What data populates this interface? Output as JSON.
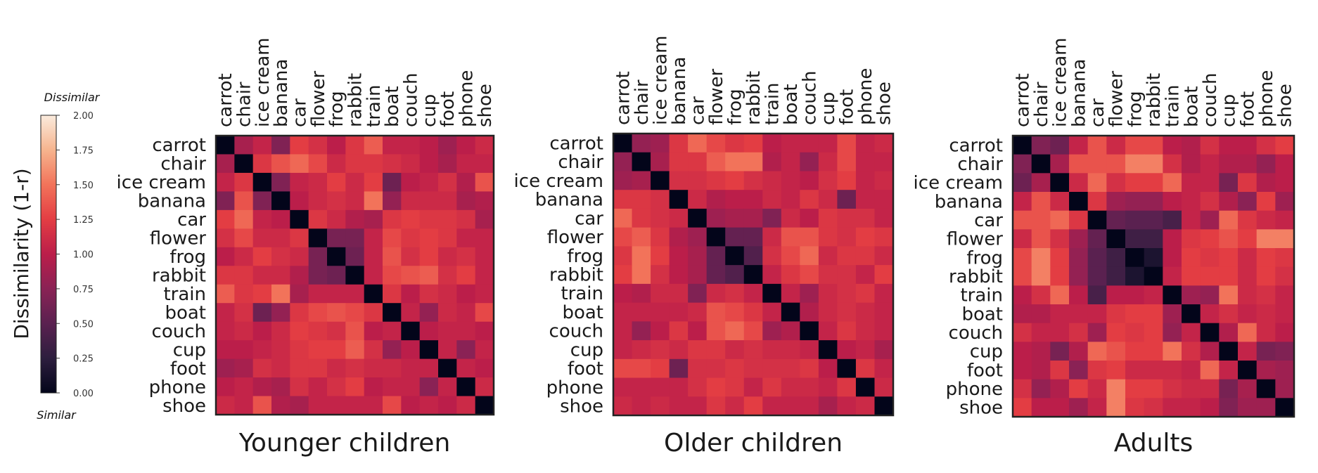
{
  "chart_data": {
    "type": "heatmap",
    "items": [
      "carrot",
      "chair",
      "ice cream",
      "banana",
      "car",
      "flower",
      "frog",
      "rabbit",
      "train",
      "boat",
      "couch",
      "cup",
      "foot",
      "phone",
      "shoe"
    ],
    "colorbar": {
      "label": "Dissimilarity (1-r)",
      "top_label": "Dissimilar",
      "bottom_label": "Similar",
      "range": [
        0,
        2
      ],
      "ticks": [
        "2.00",
        "1.75",
        "1.50",
        "1.25",
        "1.00",
        "0.75",
        "0.50",
        "0.25",
        "0.00"
      ],
      "colormap": "rocket"
    },
    "panels": [
      {
        "title": "Younger children",
        "matrix": [
          [
            0.0,
            0.9,
            1.05,
            0.7,
            1.25,
            1.15,
            1.0,
            1.2,
            1.4,
            1.05,
            1.05,
            1.0,
            0.85,
            1.0,
            1.1
          ],
          [
            0.9,
            0.0,
            1.2,
            1.35,
            1.45,
            1.3,
            1.1,
            1.2,
            1.2,
            1.15,
            1.1,
            1.0,
            0.9,
            1.05,
            1.05
          ],
          [
            1.05,
            1.2,
            0.0,
            0.7,
            1.05,
            1.1,
            1.25,
            1.1,
            1.25,
            0.6,
            1.0,
            1.05,
            1.15,
            0.95,
            1.35
          ],
          [
            0.7,
            1.35,
            0.7,
            0.0,
            1.0,
            1.1,
            1.15,
            1.1,
            1.5,
            0.8,
            1.1,
            1.1,
            1.1,
            0.9,
            0.95
          ],
          [
            1.25,
            1.45,
            1.05,
            1.0,
            0.0,
            1.2,
            1.1,
            0.95,
            0.9,
            1.2,
            1.25,
            1.2,
            1.2,
            1.15,
            0.9
          ],
          [
            1.15,
            1.3,
            1.1,
            1.1,
            1.2,
            0.0,
            0.65,
            0.65,
            1.05,
            1.3,
            1.2,
            1.25,
            1.2,
            1.05,
            1.05
          ],
          [
            1.0,
            1.1,
            1.25,
            1.15,
            1.1,
            0.65,
            0.0,
            0.6,
            1.05,
            1.35,
            1.15,
            1.25,
            1.1,
            1.15,
            1.05
          ],
          [
            1.2,
            1.2,
            1.1,
            1.1,
            0.95,
            0.65,
            0.6,
            0.0,
            1.05,
            1.3,
            1.35,
            1.4,
            1.15,
            1.25,
            1.05
          ],
          [
            1.4,
            1.2,
            1.25,
            1.5,
            0.9,
            1.05,
            1.05,
            1.05,
            0.0,
            1.2,
            1.0,
            1.15,
            1.1,
            1.0,
            1.05
          ],
          [
            1.05,
            1.15,
            0.6,
            0.8,
            1.2,
            1.3,
            1.35,
            1.3,
            1.2,
            0.0,
            1.05,
            0.8,
            1.1,
            1.05,
            1.3
          ],
          [
            1.05,
            1.1,
            1.0,
            1.1,
            1.25,
            1.2,
            1.15,
            1.35,
            1.0,
            1.05,
            0.0,
            1.0,
            1.05,
            1.05,
            1.0
          ],
          [
            1.0,
            1.0,
            1.05,
            1.1,
            1.2,
            1.25,
            1.25,
            1.4,
            1.15,
            0.8,
            1.0,
            0.0,
            1.05,
            0.75,
            1.05
          ],
          [
            0.85,
            0.9,
            1.15,
            1.1,
            1.2,
            1.2,
            1.1,
            1.15,
            1.1,
            1.1,
            1.05,
            1.05,
            0.0,
            1.05,
            1.0
          ],
          [
            1.0,
            1.05,
            0.95,
            0.9,
            1.15,
            1.05,
            1.15,
            1.25,
            1.0,
            1.05,
            1.05,
            0.75,
            1.05,
            0.0,
            1.1
          ],
          [
            1.1,
            1.05,
            1.35,
            0.95,
            0.9,
            1.05,
            1.05,
            1.05,
            1.05,
            1.3,
            1.0,
            1.05,
            1.0,
            1.1,
            0.0
          ]
        ]
      },
      {
        "title": "Older children",
        "matrix": [
          [
            0.0,
            0.8,
            0.85,
            1.2,
            1.45,
            1.3,
            1.2,
            1.25,
            1.0,
            1.05,
            1.05,
            1.05,
            1.3,
            1.05,
            1.1
          ],
          [
            0.8,
            0.0,
            0.9,
            1.2,
            1.2,
            1.4,
            1.5,
            1.5,
            0.95,
            1.05,
            0.8,
            1.1,
            1.3,
            1.05,
            1.05
          ],
          [
            0.85,
            0.9,
            0.0,
            1.15,
            1.15,
            1.2,
            1.25,
            1.15,
            1.1,
            1.05,
            1.0,
            1.15,
            1.25,
            1.05,
            1.1
          ],
          [
            1.2,
            1.2,
            1.15,
            0.0,
            1.1,
            0.95,
            1.0,
            1.0,
            1.1,
            1.05,
            1.2,
            1.1,
            0.6,
            1.05,
            1.05
          ],
          [
            1.45,
            1.2,
            1.15,
            1.1,
            0.0,
            0.85,
            0.9,
            0.9,
            0.7,
            1.1,
            1.0,
            1.2,
            1.15,
            1.15,
            1.05
          ],
          [
            1.3,
            1.4,
            1.2,
            0.95,
            0.85,
            0.0,
            0.55,
            0.55,
            1.1,
            1.35,
            1.35,
            1.2,
            1.15,
            1.25,
            1.2
          ],
          [
            1.2,
            1.5,
            1.25,
            1.0,
            0.9,
            0.55,
            0.0,
            0.45,
            1.15,
            1.3,
            1.45,
            1.1,
            1.2,
            1.2,
            1.1
          ],
          [
            1.25,
            1.5,
            1.15,
            1.0,
            0.9,
            0.55,
            0.45,
            0.0,
            1.05,
            1.2,
            1.3,
            1.15,
            1.15,
            1.05,
            1.25
          ],
          [
            1.0,
            0.95,
            1.1,
            1.1,
            0.7,
            1.1,
            1.15,
            1.05,
            0.0,
            1.05,
            0.85,
            1.1,
            1.15,
            1.2,
            1.05
          ],
          [
            1.05,
            1.05,
            1.05,
            1.05,
            1.1,
            1.35,
            1.3,
            1.2,
            1.05,
            0.0,
            0.95,
            1.1,
            1.15,
            1.1,
            1.05
          ],
          [
            1.05,
            0.8,
            1.0,
            1.2,
            1.0,
            1.35,
            1.45,
            1.3,
            0.85,
            0.95,
            0.0,
            1.05,
            1.2,
            1.1,
            1.05
          ],
          [
            1.05,
            1.1,
            1.15,
            1.1,
            1.2,
            1.2,
            1.1,
            1.15,
            1.1,
            1.1,
            1.05,
            0.0,
            1.0,
            1.05,
            0.9
          ],
          [
            1.3,
            1.3,
            1.25,
            0.6,
            1.15,
            1.15,
            1.2,
            1.15,
            1.15,
            1.15,
            1.2,
            1.0,
            0.0,
            1.2,
            1.05
          ],
          [
            1.05,
            1.05,
            1.05,
            1.05,
            1.15,
            1.25,
            1.2,
            1.05,
            1.2,
            1.1,
            1.1,
            1.05,
            1.2,
            0.0,
            1.1
          ],
          [
            1.1,
            1.05,
            1.1,
            1.05,
            1.05,
            1.2,
            1.1,
            1.25,
            1.05,
            1.05,
            1.05,
            0.9,
            1.05,
            1.1,
            0.0
          ]
        ]
      },
      {
        "title": "Adults",
        "matrix": [
          [
            0.0,
            0.7,
            0.6,
            1.05,
            1.35,
            1.1,
            1.3,
            1.3,
            1.0,
            0.95,
            1.15,
            1.0,
            1.0,
            1.15,
            1.25
          ],
          [
            0.7,
            0.0,
            0.9,
            1.35,
            1.35,
            1.35,
            1.55,
            1.55,
            1.15,
            0.95,
            1.05,
            0.95,
            0.95,
            0.8,
            1.0
          ],
          [
            0.6,
            0.9,
            0.0,
            1.1,
            1.45,
            1.15,
            1.25,
            1.25,
            1.45,
            1.05,
            1.05,
            0.65,
            1.2,
            0.95,
            1.0
          ],
          [
            1.05,
            1.35,
            1.1,
            0.0,
            1.2,
            0.85,
            0.8,
            0.8,
            1.0,
            1.05,
            1.15,
            0.95,
            0.75,
            1.25,
            0.85
          ],
          [
            1.35,
            1.35,
            1.45,
            1.2,
            0.0,
            0.55,
            0.5,
            0.5,
            0.4,
            1.05,
            0.85,
            1.45,
            1.2,
            1.1,
            1.05
          ],
          [
            1.1,
            1.35,
            1.15,
            0.85,
            0.55,
            0.0,
            0.35,
            0.35,
            1.0,
            1.2,
            1.25,
            1.35,
            1.25,
            1.55,
            1.55
          ],
          [
            1.3,
            1.55,
            1.25,
            0.8,
            0.5,
            0.35,
            0.0,
            0.15,
            1.0,
            1.25,
            1.2,
            1.25,
            1.1,
            1.25,
            1.2
          ],
          [
            1.3,
            1.55,
            1.25,
            0.8,
            0.5,
            0.35,
            0.15,
            0.0,
            1.05,
            1.25,
            1.25,
            1.25,
            1.1,
            1.25,
            1.15
          ],
          [
            1.0,
            1.15,
            1.45,
            1.0,
            0.4,
            1.0,
            1.0,
            1.05,
            0.0,
            0.85,
            0.8,
            1.5,
            1.1,
            1.15,
            1.05
          ],
          [
            0.95,
            0.95,
            1.05,
            1.05,
            1.05,
            1.2,
            1.25,
            1.25,
            0.85,
            0.0,
            1.05,
            1.15,
            1.05,
            1.1,
            1.05
          ],
          [
            1.15,
            1.05,
            1.05,
            1.15,
            0.85,
            1.25,
            1.2,
            1.25,
            0.8,
            1.05,
            0.0,
            0.95,
            1.45,
            1.1,
            1.0
          ],
          [
            1.0,
            0.95,
            0.65,
            0.95,
            1.45,
            1.35,
            1.25,
            1.25,
            1.5,
            1.15,
            0.95,
            0.0,
            1.05,
            0.65,
            0.7
          ],
          [
            1.0,
            0.95,
            1.2,
            0.75,
            1.2,
            1.25,
            1.1,
            1.1,
            1.1,
            1.05,
            1.45,
            1.05,
            0.0,
            0.9,
            0.85
          ],
          [
            1.15,
            0.8,
            0.95,
            1.25,
            1.1,
            1.55,
            1.25,
            1.25,
            1.15,
            1.1,
            1.1,
            0.65,
            0.9,
            0.0,
            0.85
          ],
          [
            1.25,
            1.0,
            1.0,
            0.85,
            1.05,
            1.55,
            1.2,
            1.15,
            1.05,
            1.05,
            1.0,
            0.7,
            0.85,
            0.85,
            0.0
          ]
        ]
      }
    ]
  }
}
